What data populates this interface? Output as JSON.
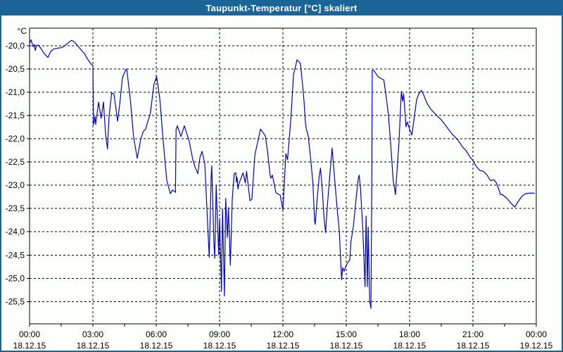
{
  "window": {
    "title": "Taupunkt-Temperatur [°C] skaliert"
  },
  "colors": {
    "titlebar": "#1A6498",
    "window_border": "#1A6498",
    "background": "#FCFFFC",
    "line": "#0000CC",
    "grid": "#000000",
    "text": "#000000"
  },
  "chart_data": {
    "type": "line",
    "title": "Taupunkt-Temperatur [°C] skaliert",
    "y_unit_label": "°C",
    "xlabel": "",
    "ylabel": "°C",
    "grid": true,
    "legend": "none",
    "xlim_hours": [
      0,
      24
    ],
    "ylim": [
      -25.98,
      -19.62
    ],
    "x_minor_tick_hours": 1.5,
    "x_gridline_hours": [
      3,
      6,
      9,
      12,
      15,
      18,
      21
    ],
    "y_ticks": [
      {
        "value": -20.0,
        "label": "-20,0"
      },
      {
        "value": -20.5,
        "label": "-20,5"
      },
      {
        "value": -21.0,
        "label": "-21,0"
      },
      {
        "value": -21.5,
        "label": "-21,5"
      },
      {
        "value": -22.0,
        "label": "-22,0"
      },
      {
        "value": -22.5,
        "label": "-22,5"
      },
      {
        "value": -23.0,
        "label": "-23,0"
      },
      {
        "value": -23.5,
        "label": "-23,5"
      },
      {
        "value": -24.0,
        "label": "-24,0"
      },
      {
        "value": -24.5,
        "label": "-24,5"
      },
      {
        "value": -25.0,
        "label": "-25,0"
      },
      {
        "value": -25.5,
        "label": "-25,5"
      }
    ],
    "x_ticks": [
      {
        "h": 0,
        "time": "00:00",
        "date": "18.12.15"
      },
      {
        "h": 3,
        "time": "03:00",
        "date": "18.12.15"
      },
      {
        "h": 6,
        "time": "06:00",
        "date": "18.12.15"
      },
      {
        "h": 9,
        "time": "09:00",
        "date": "18.12.15"
      },
      {
        "h": 12,
        "time": "12:00",
        "date": "18.12.15"
      },
      {
        "h": 15,
        "time": "15:00",
        "date": "18.12.15"
      },
      {
        "h": 18,
        "time": "18:00",
        "date": "18.12.15"
      },
      {
        "h": 21,
        "time": "21:00",
        "date": "18.12.15"
      },
      {
        "h": 24,
        "time": "00:00",
        "date": "19.12.15"
      }
    ],
    "points": [
      [
        0.0,
        -19.95
      ],
      [
        0.07,
        -19.87
      ],
      [
        0.17,
        -20.02
      ],
      [
        0.22,
        -19.97
      ],
      [
        0.27,
        -20.1
      ],
      [
        0.33,
        -19.99
      ],
      [
        0.43,
        -19.99
      ],
      [
        0.53,
        -20.05
      ],
      [
        0.7,
        -20.17
      ],
      [
        0.87,
        -20.25
      ],
      [
        1.0,
        -20.12
      ],
      [
        1.13,
        -20.07
      ],
      [
        1.33,
        -20.05
      ],
      [
        1.5,
        -20.04
      ],
      [
        1.6,
        -20.02
      ],
      [
        1.87,
        -19.92
      ],
      [
        2.0,
        -19.88
      ],
      [
        2.17,
        -19.94
      ],
      [
        2.37,
        -20.05
      ],
      [
        2.6,
        -20.17
      ],
      [
        2.77,
        -20.3
      ],
      [
        2.93,
        -20.4
      ],
      [
        3.0,
        -20.42
      ],
      [
        3.03,
        -21.7
      ],
      [
        3.1,
        -21.52
      ],
      [
        3.13,
        -21.69
      ],
      [
        3.27,
        -21.21
      ],
      [
        3.39,
        -21.56
      ],
      [
        3.5,
        -21.21
      ],
      [
        3.6,
        -21.89
      ],
      [
        3.69,
        -22.22
      ],
      [
        3.77,
        -21.49
      ],
      [
        3.89,
        -21.01
      ],
      [
        4.0,
        -21.04
      ],
      [
        4.17,
        -21.62
      ],
      [
        4.27,
        -21.26
      ],
      [
        4.4,
        -20.68
      ],
      [
        4.57,
        -20.5
      ],
      [
        4.61,
        -20.53
      ],
      [
        4.77,
        -21.14
      ],
      [
        4.93,
        -21.97
      ],
      [
        5.1,
        -22.42
      ],
      [
        5.27,
        -22.0
      ],
      [
        5.39,
        -21.84
      ],
      [
        5.5,
        -21.79
      ],
      [
        5.56,
        -21.69
      ],
      [
        5.72,
        -21.46
      ],
      [
        5.89,
        -20.83
      ],
      [
        6.02,
        -20.66
      ],
      [
        6.17,
        -21.14
      ],
      [
        6.33,
        -22.05
      ],
      [
        6.5,
        -22.9
      ],
      [
        6.67,
        -23.18
      ],
      [
        6.77,
        -23.1
      ],
      [
        6.91,
        -23.15
      ],
      [
        6.94,
        -21.8
      ],
      [
        7.0,
        -21.72
      ],
      [
        7.17,
        -21.95
      ],
      [
        7.33,
        -21.72
      ],
      [
        7.56,
        -22.05
      ],
      [
        7.72,
        -22.42
      ],
      [
        7.83,
        -22.6
      ],
      [
        7.97,
        -22.75
      ],
      [
        8.07,
        -22.4
      ],
      [
        8.17,
        -22.27
      ],
      [
        8.3,
        -22.53
      ],
      [
        8.37,
        -23.21
      ],
      [
        8.51,
        -24.55
      ],
      [
        8.6,
        -22.83
      ],
      [
        8.63,
        -22.58
      ],
      [
        8.73,
        -24.22
      ],
      [
        8.77,
        -24.57
      ],
      [
        8.84,
        -23.0
      ],
      [
        8.96,
        -24.5
      ],
      [
        9.0,
        -23.71
      ],
      [
        9.09,
        -25.28
      ],
      [
        9.14,
        -23.51
      ],
      [
        9.23,
        -25.38
      ],
      [
        9.29,
        -23.28
      ],
      [
        9.37,
        -24.12
      ],
      [
        9.42,
        -23.48
      ],
      [
        9.51,
        -24.72
      ],
      [
        9.6,
        -23.31
      ],
      [
        9.69,
        -22.75
      ],
      [
        9.77,
        -22.73
      ],
      [
        9.8,
        -22.93
      ],
      [
        9.83,
        -22.83
      ],
      [
        9.87,
        -23.08
      ],
      [
        9.93,
        -22.95
      ],
      [
        10.11,
        -22.73
      ],
      [
        10.22,
        -22.95
      ],
      [
        10.28,
        -22.7
      ],
      [
        10.44,
        -23.33
      ],
      [
        10.53,
        -23.3
      ],
      [
        10.67,
        -22.35
      ],
      [
        10.94,
        -21.79
      ],
      [
        11.17,
        -21.94
      ],
      [
        11.28,
        -22.3
      ],
      [
        11.39,
        -22.77
      ],
      [
        11.43,
        -22.85
      ],
      [
        11.5,
        -22.78
      ],
      [
        11.67,
        -23.16
      ],
      [
        11.87,
        -23.21
      ],
      [
        12.0,
        -23.53
      ],
      [
        12.14,
        -22.32
      ],
      [
        12.22,
        -22.45
      ],
      [
        12.39,
        -21.49
      ],
      [
        12.5,
        -20.63
      ],
      [
        12.67,
        -20.3
      ],
      [
        12.83,
        -20.38
      ],
      [
        12.94,
        -20.88
      ],
      [
        13.0,
        -21.19
      ],
      [
        13.06,
        -21.62
      ],
      [
        13.11,
        -21.79
      ],
      [
        13.2,
        -21.94
      ],
      [
        13.33,
        -22.5
      ],
      [
        13.42,
        -22.95
      ],
      [
        13.5,
        -23.76
      ],
      [
        13.53,
        -23.84
      ],
      [
        13.61,
        -23.36
      ],
      [
        13.72,
        -22.8
      ],
      [
        13.78,
        -22.63
      ],
      [
        13.87,
        -23.11
      ],
      [
        13.94,
        -23.66
      ],
      [
        14.02,
        -24.02
      ],
      [
        14.11,
        -23.41
      ],
      [
        14.22,
        -22.8
      ],
      [
        14.33,
        -22.2
      ],
      [
        14.44,
        -22.8
      ],
      [
        14.56,
        -23.46
      ],
      [
        14.67,
        -23.97
      ],
      [
        14.72,
        -24.47
      ],
      [
        14.78,
        -25.03
      ],
      [
        14.83,
        -24.77
      ],
      [
        14.9,
        -24.85
      ],
      [
        14.97,
        -24.75
      ],
      [
        15.06,
        -24.67
      ],
      [
        15.17,
        -24.6
      ],
      [
        15.22,
        -24.22
      ],
      [
        15.33,
        -23.91
      ],
      [
        15.44,
        -23.41
      ],
      [
        15.56,
        -22.88
      ],
      [
        15.61,
        -22.78
      ],
      [
        15.67,
        -23.03
      ],
      [
        15.78,
        -23.91
      ],
      [
        15.83,
        -24.47
      ],
      [
        15.89,
        -25.18
      ],
      [
        15.94,
        -23.66
      ],
      [
        16.0,
        -25.18
      ],
      [
        16.04,
        -23.9
      ],
      [
        16.11,
        -25.48
      ],
      [
        16.17,
        -25.65
      ],
      [
        16.21,
        -22.95
      ],
      [
        16.23,
        -20.53
      ],
      [
        16.31,
        -20.53
      ],
      [
        16.5,
        -20.66
      ],
      [
        16.67,
        -20.71
      ],
      [
        16.78,
        -20.73
      ],
      [
        16.89,
        -21.09
      ],
      [
        17.0,
        -21.49
      ],
      [
        17.11,
        -22.15
      ],
      [
        17.22,
        -22.87
      ],
      [
        17.33,
        -23.2
      ],
      [
        17.44,
        -22.45
      ],
      [
        17.5,
        -22.05
      ],
      [
        17.61,
        -20.98
      ],
      [
        17.67,
        -21.19
      ],
      [
        17.72,
        -21.03
      ],
      [
        17.83,
        -21.74
      ],
      [
        17.89,
        -21.64
      ],
      [
        18.0,
        -21.79
      ],
      [
        18.11,
        -21.92
      ],
      [
        18.22,
        -21.54
      ],
      [
        18.33,
        -21.17
      ],
      [
        18.44,
        -21.03
      ],
      [
        18.56,
        -20.96
      ],
      [
        18.67,
        -21.06
      ],
      [
        18.83,
        -21.24
      ],
      [
        19.0,
        -21.36
      ],
      [
        19.17,
        -21.44
      ],
      [
        19.33,
        -21.52
      ],
      [
        19.5,
        -21.59
      ],
      [
        19.67,
        -21.69
      ],
      [
        19.83,
        -21.79
      ],
      [
        20.0,
        -21.89
      ],
      [
        20.17,
        -21.97
      ],
      [
        20.33,
        -22.05
      ],
      [
        20.5,
        -22.17
      ],
      [
        20.67,
        -22.25
      ],
      [
        20.83,
        -22.37
      ],
      [
        21.0,
        -22.47
      ],
      [
        21.17,
        -22.6
      ],
      [
        21.33,
        -22.68
      ],
      [
        21.5,
        -22.7
      ],
      [
        21.67,
        -22.78
      ],
      [
        21.83,
        -22.9
      ],
      [
        22.0,
        -22.88
      ],
      [
        22.11,
        -22.95
      ],
      [
        22.22,
        -23.08
      ],
      [
        22.31,
        -23.2
      ],
      [
        22.39,
        -23.2
      ],
      [
        22.56,
        -23.26
      ],
      [
        22.67,
        -23.31
      ],
      [
        22.83,
        -23.4
      ],
      [
        22.98,
        -23.47
      ],
      [
        23.17,
        -23.33
      ],
      [
        23.33,
        -23.23
      ],
      [
        23.5,
        -23.18
      ],
      [
        23.67,
        -23.17
      ],
      [
        23.93,
        -23.17
      ]
    ]
  }
}
